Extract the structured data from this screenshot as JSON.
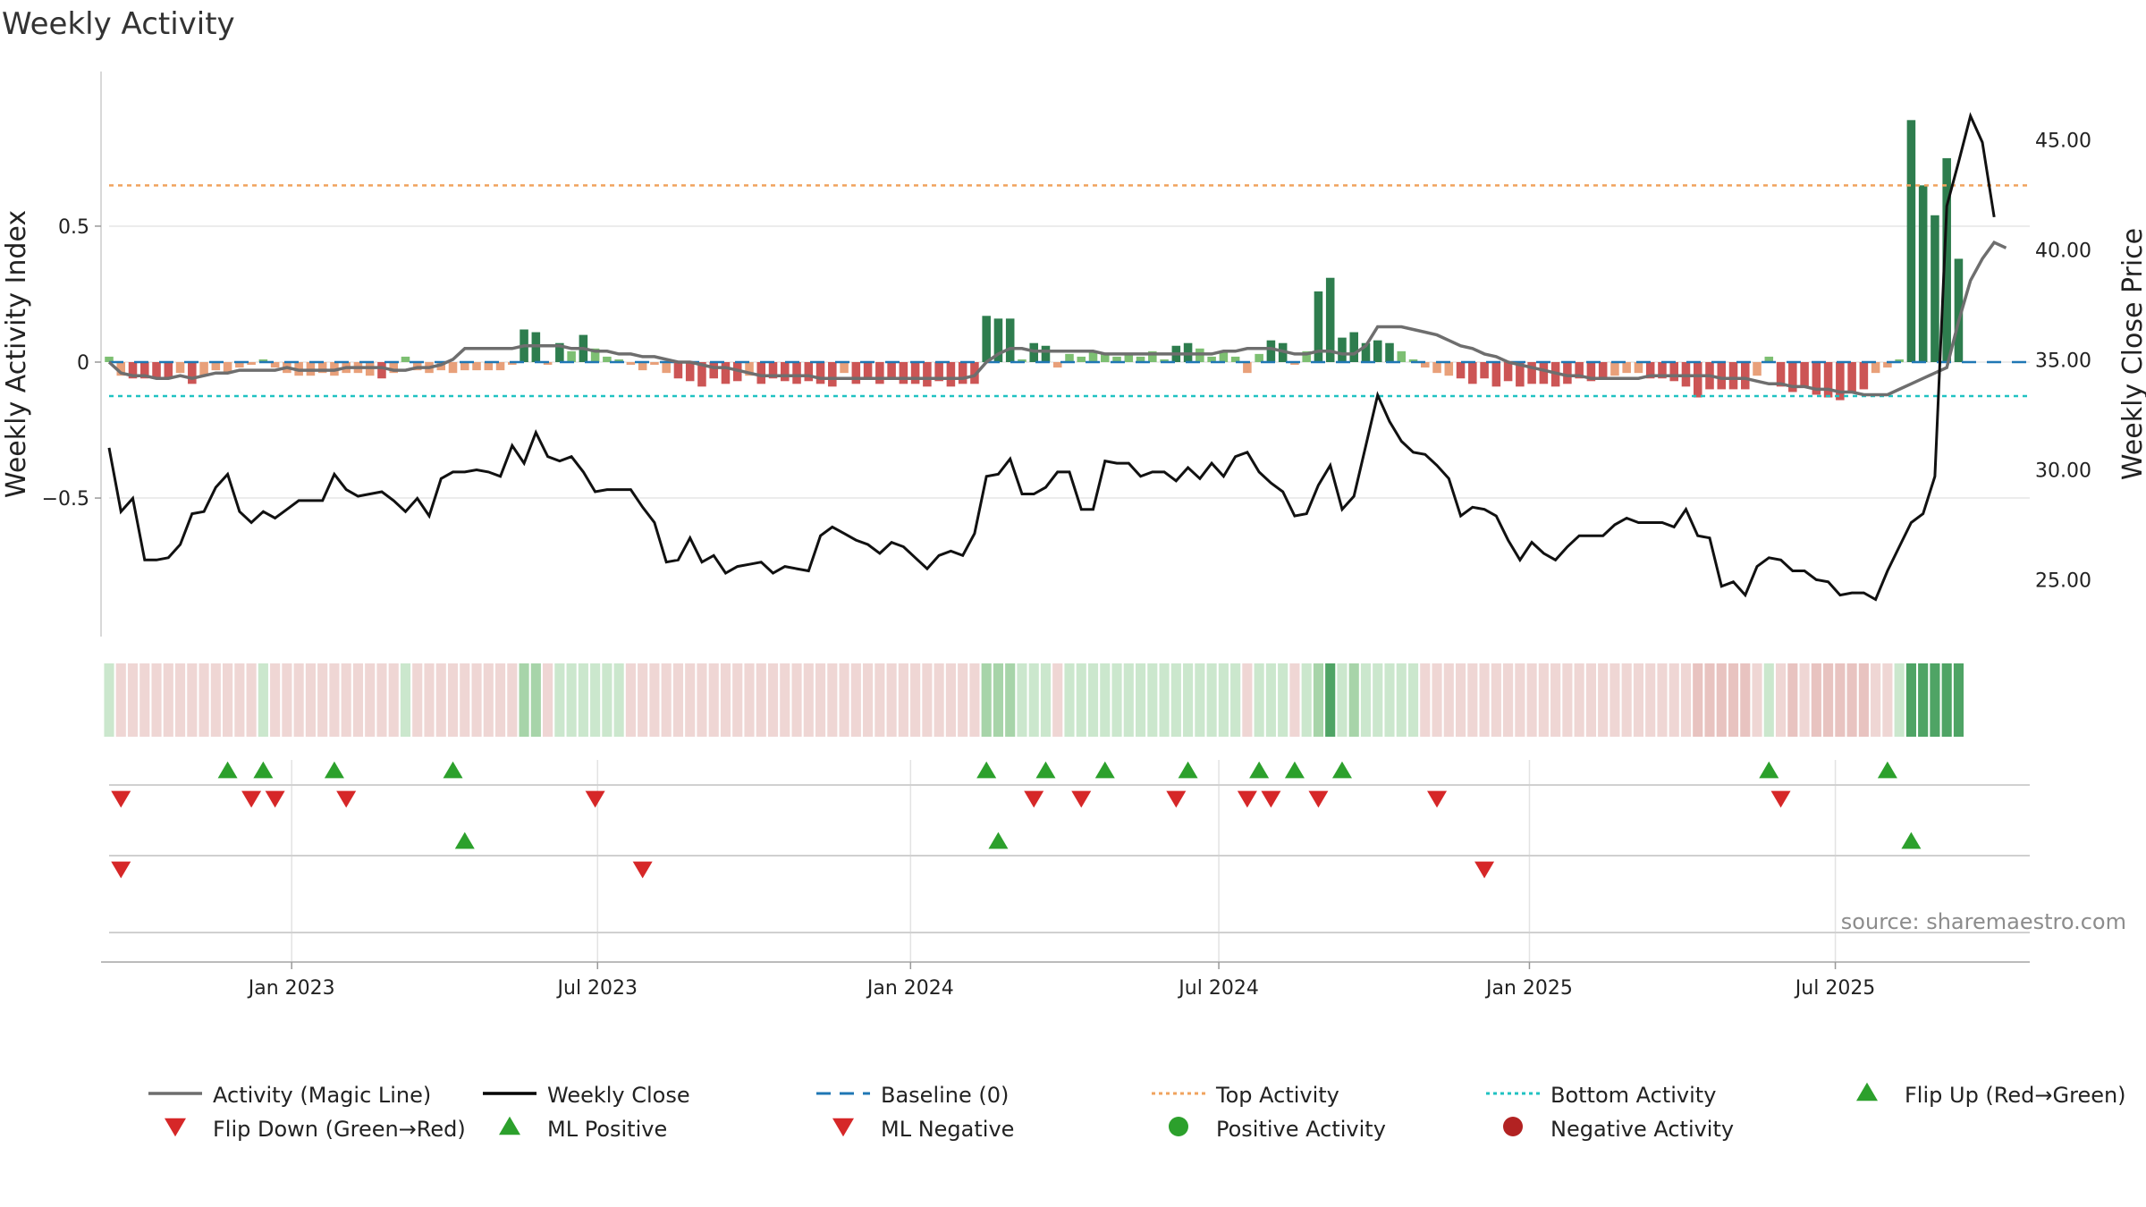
{
  "chart_data": {
    "type": "bar+line",
    "title": "Weekly Activity",
    "ylabel_left": "Weekly Activity Index",
    "ylabel_right": "Weekly Close Price",
    "source": "source: sharemaestro.com",
    "y_left_ticks": [
      0.5,
      0,
      -0.5
    ],
    "y_left_tick_labels": [
      "0.5",
      "0",
      "−0.5"
    ],
    "y_left_range": [
      -0.97,
      0.97
    ],
    "y_right_ticks": [
      45,
      40,
      35,
      30,
      25
    ],
    "y_right_tick_labels": [
      "45.00",
      "40.00",
      "35.00",
      "30.00",
      "25.00"
    ],
    "y_right_range": [
      22.9,
      46.9
    ],
    "x_range_weeks": [
      0,
      162
    ],
    "x_ticks": [
      {
        "label": "Jan 2023",
        "week": 15.4
      },
      {
        "label": "Jul 2023",
        "week": 41.2
      },
      {
        "label": "Jan 2024",
        "week": 67.6
      },
      {
        "label": "Jul 2024",
        "week": 93.6
      },
      {
        "label": "Jan 2025",
        "week": 119.8
      },
      {
        "label": "Jul 2025",
        "week": 145.6
      }
    ],
    "top_activity": 0.65,
    "bottom_activity": -0.125,
    "series": [
      {
        "name": "Weekly Close",
        "values": [
          31.0,
          28.1,
          28.7,
          25.9,
          25.9,
          26.0,
          26.6,
          28.0,
          28.1,
          29.2,
          29.8,
          28.1,
          27.6,
          28.1,
          27.8,
          28.2,
          28.6,
          28.6,
          28.6,
          29.8,
          29.1,
          28.8,
          28.9,
          29.0,
          28.6,
          28.1,
          28.7,
          27.9,
          29.6,
          29.9,
          29.9,
          30.0,
          29.9,
          29.7,
          31.1,
          30.3,
          31.7,
          30.6,
          30.4,
          30.6,
          29.9,
          29.0,
          29.1,
          29.1,
          29.1,
          28.3,
          27.6,
          25.8,
          25.9,
          26.9,
          25.8,
          26.1,
          25.3,
          25.6,
          25.7,
          25.8,
          25.3,
          25.6,
          25.5,
          25.4,
          27.0,
          27.4,
          27.1,
          26.8,
          26.6,
          26.2,
          26.7,
          26.5,
          26.0,
          25.5,
          26.1,
          26.3,
          26.1,
          27.1,
          29.7,
          29.8,
          30.5,
          28.9,
          28.9,
          29.2,
          29.9,
          29.9,
          28.2,
          28.2,
          30.4,
          30.3,
          30.3,
          29.7,
          29.9,
          29.9,
          29.5,
          30.1,
          29.6,
          30.3,
          29.7,
          30.6,
          30.8,
          29.9,
          29.4,
          29.0,
          27.9,
          28.0,
          29.3,
          30.2,
          28.2,
          28.8,
          31.1,
          33.4,
          32.2,
          31.3,
          30.8,
          30.7,
          30.2,
          29.6,
          27.9,
          28.3,
          28.2,
          27.9,
          26.8,
          25.9,
          26.7,
          26.2,
          25.9,
          26.5,
          27.0,
          27.0,
          27.0,
          27.5,
          27.8,
          27.6,
          27.6,
          27.6,
          27.4,
          28.2,
          27.0,
          26.9,
          24.7,
          24.9,
          24.3,
          25.6,
          26.0,
          25.9,
          25.4,
          25.4,
          25.0,
          24.9,
          24.3,
          24.4,
          24.4,
          24.1,
          25.4,
          26.5,
          27.6,
          28.0,
          29.7,
          42.0,
          44.0,
          46.1,
          44.9,
          41.5
        ]
      },
      {
        "name": "Activity (Magic Line)",
        "values": [
          0.0,
          -0.04,
          -0.05,
          -0.05,
          -0.06,
          -0.06,
          -0.05,
          -0.06,
          -0.05,
          -0.04,
          -0.04,
          -0.03,
          -0.03,
          -0.03,
          -0.03,
          -0.02,
          -0.03,
          -0.03,
          -0.03,
          -0.03,
          -0.02,
          -0.02,
          -0.02,
          -0.02,
          -0.03,
          -0.03,
          -0.02,
          -0.02,
          -0.01,
          0.01,
          0.05,
          0.05,
          0.05,
          0.05,
          0.05,
          0.06,
          0.06,
          0.06,
          0.06,
          0.05,
          0.05,
          0.04,
          0.04,
          0.03,
          0.03,
          0.02,
          0.02,
          0.01,
          0.0,
          0.0,
          -0.01,
          -0.02,
          -0.02,
          -0.03,
          -0.04,
          -0.05,
          -0.05,
          -0.05,
          -0.05,
          -0.05,
          -0.06,
          -0.06,
          -0.06,
          -0.06,
          -0.06,
          -0.06,
          -0.06,
          -0.06,
          -0.06,
          -0.06,
          -0.06,
          -0.06,
          -0.06,
          -0.05,
          0.0,
          0.03,
          0.05,
          0.05,
          0.04,
          0.04,
          0.04,
          0.04,
          0.04,
          0.04,
          0.03,
          0.03,
          0.03,
          0.03,
          0.03,
          0.03,
          0.03,
          0.03,
          0.03,
          0.03,
          0.04,
          0.04,
          0.05,
          0.05,
          0.05,
          0.04,
          0.03,
          0.03,
          0.04,
          0.04,
          0.03,
          0.03,
          0.06,
          0.13,
          0.13,
          0.13,
          0.12,
          0.11,
          0.1,
          0.08,
          0.06,
          0.05,
          0.03,
          0.02,
          0.0,
          -0.01,
          -0.02,
          -0.03,
          -0.04,
          -0.05,
          -0.05,
          -0.06,
          -0.06,
          -0.06,
          -0.06,
          -0.06,
          -0.05,
          -0.05,
          -0.05,
          -0.05,
          -0.05,
          -0.05,
          -0.06,
          -0.06,
          -0.06,
          -0.07,
          -0.08,
          -0.08,
          -0.09,
          -0.09,
          -0.1,
          -0.1,
          -0.11,
          -0.11,
          -0.12,
          -0.12,
          -0.12,
          -0.1,
          -0.08,
          -0.06,
          -0.04,
          -0.02,
          0.15,
          0.3,
          0.38,
          0.44,
          0.42
        ]
      },
      {
        "name": "Weekly Activity Index",
        "values": [
          0.02,
          -0.05,
          -0.06,
          -0.06,
          -0.06,
          -0.06,
          -0.04,
          -0.08,
          -0.05,
          -0.03,
          -0.04,
          -0.02,
          -0.01,
          0.01,
          -0.02,
          -0.04,
          -0.05,
          -0.05,
          -0.04,
          -0.05,
          -0.04,
          -0.04,
          -0.05,
          -0.06,
          -0.04,
          0.02,
          -0.03,
          -0.04,
          -0.03,
          -0.04,
          -0.03,
          -0.03,
          -0.03,
          -0.03,
          -0.01,
          0.12,
          0.11,
          -0.01,
          0.07,
          0.04,
          0.1,
          0.05,
          0.02,
          0.01,
          -0.01,
          -0.03,
          -0.01,
          -0.04,
          -0.06,
          -0.07,
          -0.09,
          -0.06,
          -0.08,
          -0.07,
          -0.05,
          -0.08,
          -0.06,
          -0.07,
          -0.08,
          -0.07,
          -0.08,
          -0.09,
          -0.04,
          -0.08,
          -0.06,
          -0.08,
          -0.06,
          -0.08,
          -0.08,
          -0.09,
          -0.07,
          -0.09,
          -0.08,
          -0.08,
          0.17,
          0.16,
          0.16,
          0.01,
          0.07,
          0.06,
          -0.02,
          0.03,
          0.02,
          0.04,
          0.03,
          0.02,
          0.03,
          0.02,
          0.04,
          0.01,
          0.06,
          0.07,
          0.05,
          0.02,
          0.04,
          0.02,
          -0.04,
          0.03,
          0.08,
          0.07,
          -0.01,
          0.04,
          0.26,
          0.31,
          0.09,
          0.11,
          0.07,
          0.08,
          0.07,
          0.04,
          0.01,
          -0.02,
          -0.04,
          -0.05,
          -0.06,
          -0.08,
          -0.06,
          -0.09,
          -0.07,
          -0.09,
          -0.08,
          -0.08,
          -0.09,
          -0.08,
          -0.06,
          -0.07,
          -0.06,
          -0.05,
          -0.04,
          -0.04,
          -0.06,
          -0.06,
          -0.07,
          -0.09,
          -0.13,
          -0.1,
          -0.1,
          -0.1,
          -0.1,
          -0.05,
          0.02,
          -0.09,
          -0.11,
          -0.09,
          -0.12,
          -0.13,
          -0.14,
          -0.11,
          -0.1,
          -0.04,
          -0.02,
          0.01,
          0.89,
          0.65,
          0.54,
          0.75,
          0.38
        ]
      }
    ],
    "flip_up_weeks": [
      10,
      13,
      19,
      29,
      74,
      79,
      84,
      91,
      97,
      100,
      104,
      140,
      150
    ],
    "flip_down_weeks": [
      1,
      12,
      14,
      20,
      41,
      78,
      82,
      90,
      96,
      98,
      102,
      112,
      141
    ],
    "ml_positive_weeks": [
      30,
      75,
      152
    ],
    "ml_negative_weeks": [
      1,
      45,
      116
    ],
    "legend": [
      {
        "label": "Activity (Magic Line)",
        "symbol": "line",
        "color": "#6e6e6e"
      },
      {
        "label": "Weekly Close",
        "symbol": "line",
        "color": "#000000"
      },
      {
        "label": "Baseline (0)",
        "symbol": "dash",
        "color": "#1f77b4"
      },
      {
        "label": "Top Activity",
        "symbol": "dotted",
        "color": "#f0a35e"
      },
      {
        "label": "Bottom Activity",
        "symbol": "dotted",
        "color": "#20c2c2"
      },
      {
        "label": "Flip Up (Red→Green)",
        "symbol": "triangle-up",
        "color": "#2ca02c"
      },
      {
        "label": "Flip Down (Green→Red)",
        "symbol": "triangle-down",
        "color": "#d62728"
      },
      {
        "label": "ML Positive",
        "symbol": "triangle-up",
        "color": "#2ca02c"
      },
      {
        "label": "ML Negative",
        "symbol": "triangle-down",
        "color": "#d62728"
      },
      {
        "label": "Positive Activity",
        "symbol": "circle",
        "color": "#2ca02c"
      },
      {
        "label": "Negative Activity",
        "symbol": "circle",
        "color": "#b22222"
      }
    ],
    "colors": {
      "pos_strong": "#2e7d4e",
      "pos_light": "#7dbf72",
      "neg_strong": "#cc5555",
      "neg_light": "#e8a07a",
      "magic_line": "#6e6e6e",
      "close": "#111111",
      "baseline": "#1f77b4",
      "top": "#f0a35e",
      "bottom": "#20c2c2",
      "tri_up": "#2ca02c",
      "tri_down": "#d62728"
    }
  }
}
